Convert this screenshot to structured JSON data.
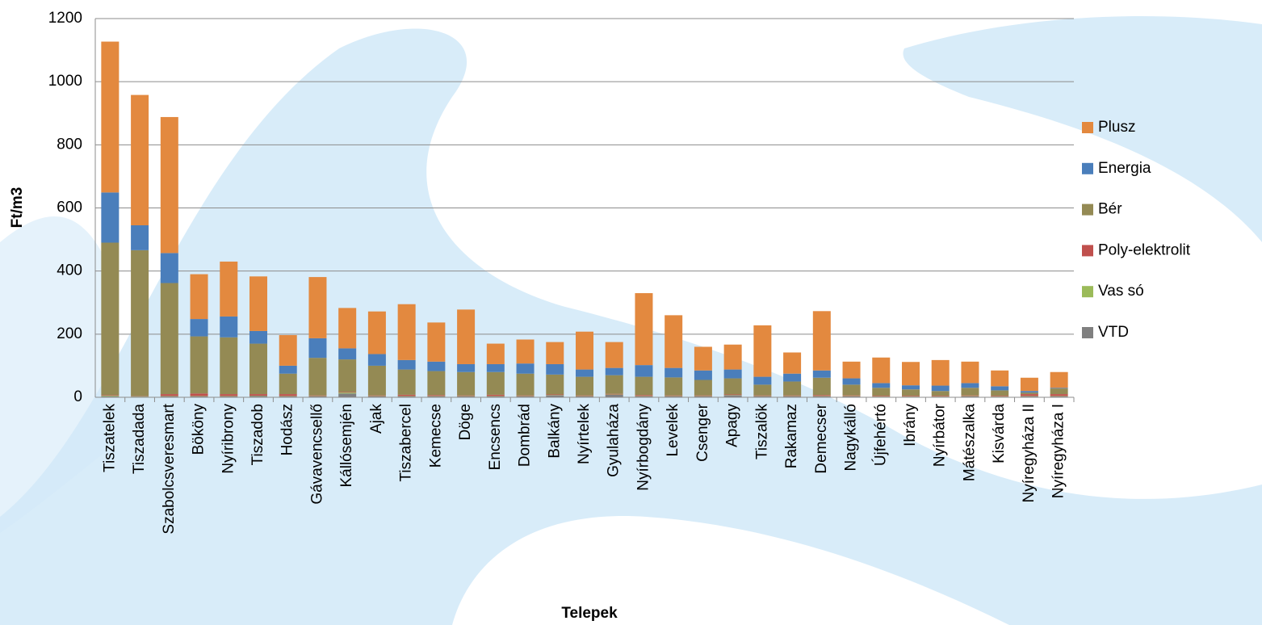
{
  "chart_data": {
    "type": "stacked_bar",
    "y_label": "Ft/m3",
    "x_label": "Telepek",
    "categories": [
      "Tiszatelek",
      "Tiszadada",
      "Szabolcsveresmart",
      "Bököny",
      "Nyíribrony",
      "Tiszadob",
      "Hodász",
      "Gávavencsellő",
      "Kállósemjén",
      "Ajak",
      "Tiszabercel",
      "Kemecse",
      "Döge",
      "Encsencs",
      "Dombrád",
      "Balkány",
      "Nyírtelek",
      "Gyulaháza",
      "Nyírbogdány",
      "Levelek",
      "Csenger",
      "Apagy",
      "Tiszalök",
      "Rakamaz",
      "Demecser",
      "Nagykálló",
      "Újfehértó",
      "Ibrány",
      "Nyírbátor",
      "Mátészalka",
      "Kisvárda",
      "Nyíregyháza II",
      "Nyíregyháza I"
    ],
    "series": [
      {
        "name": "VTD",
        "color": "#808080",
        "values": [
          3,
          2,
          3,
          3,
          3,
          4,
          3,
          3,
          12,
          3,
          3,
          3,
          3,
          3,
          3,
          6,
          3,
          8,
          3,
          3,
          3,
          6,
          3,
          3,
          3,
          3,
          2,
          2,
          2,
          3,
          2,
          3,
          3
        ]
      },
      {
        "name": "Vas só",
        "color": "#9bbb59",
        "values": [
          2,
          1,
          1,
          1,
          1,
          1,
          1,
          1,
          3,
          1,
          1,
          1,
          1,
          1,
          1,
          1,
          1,
          1,
          1,
          1,
          1,
          1,
          1,
          1,
          1,
          1,
          1,
          1,
          1,
          1,
          1,
          1,
          1
        ]
      },
      {
        "name": "Poly-elektrolit",
        "color": "#c0504d",
        "values": [
          2,
          1,
          6,
          8,
          6,
          5,
          6,
          2,
          2,
          2,
          4,
          3,
          2,
          4,
          2,
          2,
          2,
          2,
          3,
          2,
          2,
          2,
          2,
          2,
          3,
          2,
          2,
          2,
          2,
          2,
          2,
          6,
          6
        ]
      },
      {
        "name": "Bér",
        "color": "#948a54",
        "values": [
          483,
          462,
          352,
          181,
          180,
          160,
          65,
          119,
          103,
          94,
          80,
          76,
          74,
          72,
          69,
          63,
          59,
          59,
          58,
          57,
          49,
          51,
          34,
          44,
          55,
          34,
          25,
          20,
          15,
          24,
          17,
          5,
          18
        ]
      },
      {
        "name": "Energia",
        "color": "#4a7ebb",
        "values": [
          159,
          79,
          95,
          55,
          66,
          40,
          25,
          62,
          35,
          37,
          30,
          30,
          25,
          25,
          32,
          33,
          23,
          23,
          37,
          30,
          30,
          28,
          25,
          25,
          23,
          20,
          15,
          13,
          17,
          15,
          13,
          5,
          2
        ]
      },
      {
        "name": "Plusz",
        "color": "#e3893f",
        "values": [
          478,
          413,
          431,
          142,
          174,
          173,
          97,
          194,
          128,
          135,
          177,
          124,
          173,
          65,
          76,
          70,
          120,
          82,
          228,
          167,
          75,
          79,
          163,
          67,
          188,
          53,
          81,
          74,
          81,
          68,
          50,
          42,
          50
        ]
      }
    ],
    "ylim": [
      0,
      1200
    ],
    "yticks": [
      0,
      200,
      400,
      600,
      800,
      1000,
      1200
    ],
    "grid": true
  }
}
